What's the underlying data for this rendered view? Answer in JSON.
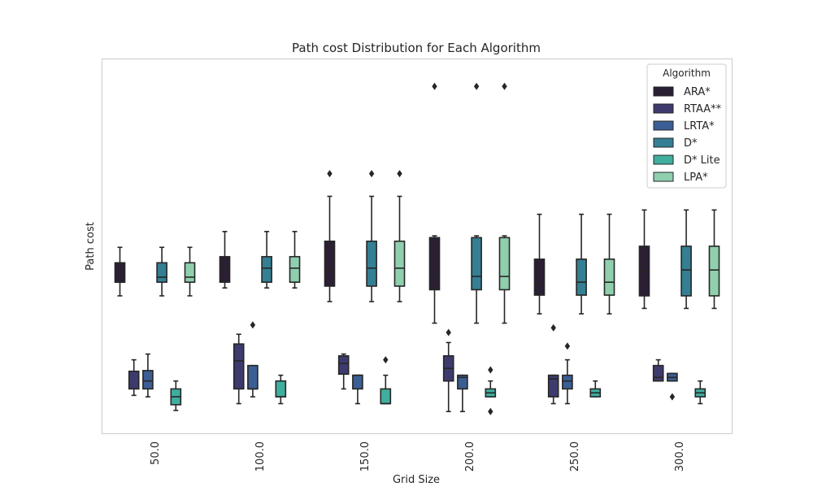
{
  "chart_data": {
    "type": "box",
    "title": "Path cost Distribution for Each Algorithm",
    "xlabel": "Grid Size",
    "ylabel": "Path cost",
    "categories": [
      "50.0",
      "100.0",
      "150.0",
      "200.0",
      "250.0",
      "300.0"
    ],
    "ylim": [
      0,
      1
    ],
    "y_ticks_shown": false,
    "grid": false,
    "legend": {
      "title": "Algorithm",
      "position": "top-right"
    },
    "series": [
      {
        "name": "ARA*",
        "color": "#2b1f33",
        "boxes": [
          {
            "category": "50.0",
            "whislo": 0.378,
            "q1": 0.416,
            "med": 0.416,
            "q3": 0.47,
            "whishi": 0.513,
            "fliers": []
          },
          {
            "category": "100.0",
            "whislo": 0.4,
            "q1": 0.416,
            "med": 0.45,
            "q3": 0.487,
            "whishi": 0.557,
            "fliers": []
          },
          {
            "category": "150.0",
            "whislo": 0.362,
            "q1": 0.405,
            "med": 0.45,
            "q3": 0.53,
            "whishi": 0.655,
            "fliers": [
              0.718
            ]
          },
          {
            "category": "200.0",
            "whislo": 0.302,
            "q1": 0.395,
            "med": 0.432,
            "q3": 0.54,
            "whishi": 0.545,
            "fliers": [
              0.961
            ]
          },
          {
            "category": "250.0",
            "whislo": 0.328,
            "q1": 0.38,
            "med": 0.41,
            "q3": 0.48,
            "whishi": 0.605,
            "fliers": []
          },
          {
            "category": "300.0",
            "whislo": 0.343,
            "q1": 0.378,
            "med": 0.446,
            "q3": 0.516,
            "whishi": 0.617,
            "fliers": []
          }
        ]
      },
      {
        "name": "RTAA**",
        "color": "#3d3b6e",
        "boxes": [
          {
            "category": "50.0",
            "whislo": 0.101,
            "q1": 0.119,
            "med": 0.168,
            "q3": 0.168,
            "whishi": 0.2,
            "fliers": []
          },
          {
            "category": "100.0",
            "whislo": 0.078,
            "q1": 0.119,
            "med": 0.197,
            "q3": 0.244,
            "whishi": 0.271,
            "fliers": []
          },
          {
            "category": "150.0",
            "whislo": 0.119,
            "q1": 0.16,
            "med": 0.19,
            "q3": 0.211,
            "whishi": 0.216,
            "fliers": []
          },
          {
            "category": "200.0",
            "whislo": 0.056,
            "q1": 0.141,
            "med": 0.176,
            "q3": 0.211,
            "whishi": 0.248,
            "fliers": [
              0.276
            ]
          },
          {
            "category": "250.0",
            "whislo": 0.078,
            "q1": 0.097,
            "med": 0.147,
            "q3": 0.157,
            "whishi": 0.157,
            "fliers": [
              0.289
            ]
          },
          {
            "category": "300.0",
            "whislo": 0.141,
            "q1": 0.141,
            "med": 0.151,
            "q3": 0.184,
            "whishi": 0.2,
            "fliers": []
          }
        ]
      },
      {
        "name": "LRTA*",
        "color": "#3b5e94",
        "boxes": [
          {
            "category": "50.0",
            "whislo": 0.097,
            "q1": 0.119,
            "med": 0.141,
            "q3": 0.17,
            "whishi": 0.216,
            "fliers": []
          },
          {
            "category": "100.0",
            "whislo": 0.097,
            "q1": 0.119,
            "med": 0.119,
            "q3": 0.184,
            "whishi": 0.184,
            "fliers": [
              0.297
            ]
          },
          {
            "category": "150.0",
            "whislo": 0.078,
            "q1": 0.119,
            "med": 0.157,
            "q3": 0.157,
            "whishi": 0.157,
            "fliers": []
          },
          {
            "category": "200.0",
            "whislo": 0.056,
            "q1": 0.119,
            "med": 0.151,
            "q3": 0.157,
            "whishi": 0.157,
            "fliers": []
          },
          {
            "category": "250.0",
            "whislo": 0.078,
            "q1": 0.119,
            "med": 0.141,
            "q3": 0.157,
            "whishi": 0.2,
            "fliers": [
              0.238
            ]
          },
          {
            "category": "300.0",
            "whislo": 0.141,
            "q1": 0.141,
            "med": 0.151,
            "q3": 0.162,
            "whishi": 0.162,
            "fliers": [
              0.097
            ]
          }
        ]
      },
      {
        "name": "D*",
        "color": "#347f93",
        "boxes": [
          {
            "category": "50.0",
            "whislo": 0.378,
            "q1": 0.416,
            "med": 0.43,
            "q3": 0.47,
            "whishi": 0.513,
            "fliers": []
          },
          {
            "category": "100.0",
            "whislo": 0.4,
            "q1": 0.416,
            "med": 0.455,
            "q3": 0.487,
            "whishi": 0.557,
            "fliers": []
          },
          {
            "category": "150.0",
            "whislo": 0.362,
            "q1": 0.405,
            "med": 0.455,
            "q3": 0.53,
            "whishi": 0.655,
            "fliers": [
              0.718
            ]
          },
          {
            "category": "200.0",
            "whislo": 0.302,
            "q1": 0.395,
            "med": 0.432,
            "q3": 0.54,
            "whishi": 0.545,
            "fliers": [
              0.961
            ]
          },
          {
            "category": "250.0",
            "whislo": 0.328,
            "q1": 0.38,
            "med": 0.416,
            "q3": 0.48,
            "whishi": 0.605,
            "fliers": []
          },
          {
            "category": "300.0",
            "whislo": 0.343,
            "q1": 0.378,
            "med": 0.45,
            "q3": 0.516,
            "whishi": 0.617,
            "fliers": []
          }
        ]
      },
      {
        "name": "D* Lite",
        "color": "#3fae9f",
        "boxes": [
          {
            "category": "50.0",
            "whislo": 0.059,
            "q1": 0.075,
            "med": 0.097,
            "q3": 0.119,
            "whishi": 0.141,
            "fliers": []
          },
          {
            "category": "100.0",
            "whislo": 0.078,
            "q1": 0.097,
            "med": 0.097,
            "q3": 0.141,
            "whishi": 0.157,
            "fliers": []
          },
          {
            "category": "150.0",
            "whislo": 0.078,
            "q1": 0.078,
            "med": 0.078,
            "q3": 0.119,
            "whishi": 0.157,
            "fliers": [
              0.2
            ]
          },
          {
            "category": "200.0",
            "whislo": 0.097,
            "q1": 0.097,
            "med": 0.108,
            "q3": 0.119,
            "whishi": 0.141,
            "fliers": [
              0.172,
              0.056
            ]
          },
          {
            "category": "250.0",
            "whislo": 0.097,
            "q1": 0.097,
            "med": 0.108,
            "q3": 0.119,
            "whishi": 0.141,
            "fliers": []
          },
          {
            "category": "300.0",
            "whislo": 0.078,
            "q1": 0.097,
            "med": 0.108,
            "q3": 0.119,
            "whishi": 0.141,
            "fliers": []
          }
        ]
      },
      {
        "name": "LPA*",
        "color": "#8fcfae",
        "boxes": [
          {
            "category": "50.0",
            "whislo": 0.378,
            "q1": 0.416,
            "med": 0.43,
            "q3": 0.47,
            "whishi": 0.513,
            "fliers": []
          },
          {
            "category": "100.0",
            "whislo": 0.4,
            "q1": 0.416,
            "med": 0.455,
            "q3": 0.487,
            "whishi": 0.557,
            "fliers": []
          },
          {
            "category": "150.0",
            "whislo": 0.362,
            "q1": 0.405,
            "med": 0.455,
            "q3": 0.53,
            "whishi": 0.655,
            "fliers": [
              0.718
            ]
          },
          {
            "category": "200.0",
            "whislo": 0.302,
            "q1": 0.395,
            "med": 0.432,
            "q3": 0.54,
            "whishi": 0.545,
            "fliers": [
              0.961
            ]
          },
          {
            "category": "250.0",
            "whislo": 0.328,
            "q1": 0.38,
            "med": 0.416,
            "q3": 0.48,
            "whishi": 0.605,
            "fliers": []
          },
          {
            "category": "300.0",
            "whislo": 0.343,
            "q1": 0.378,
            "med": 0.45,
            "q3": 0.516,
            "whishi": 0.617,
            "fliers": []
          }
        ]
      }
    ]
  }
}
